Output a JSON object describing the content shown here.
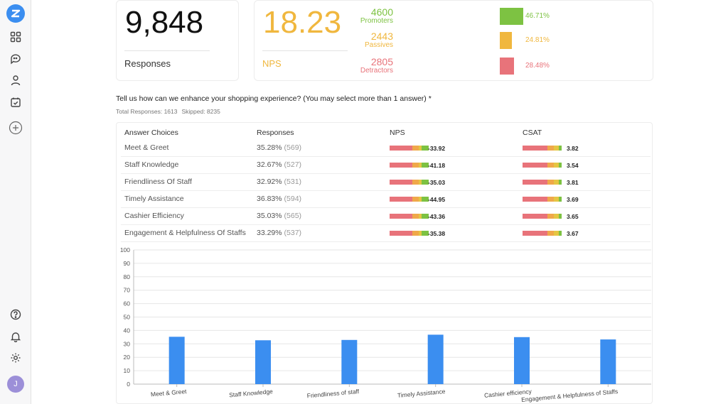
{
  "sidebar": {
    "logo": "zonka-logo-icon",
    "items": [
      {
        "name": "dashboard-icon"
      },
      {
        "name": "feedback-icon"
      },
      {
        "name": "contacts-icon"
      },
      {
        "name": "tasks-icon"
      },
      {
        "name": "add-icon"
      }
    ],
    "bottom": [
      {
        "name": "help-icon"
      },
      {
        "name": "notifications-icon"
      },
      {
        "name": "settings-icon"
      }
    ],
    "avatar_initial": "J"
  },
  "responses_card": {
    "value": "9,848",
    "label": "Responses"
  },
  "nps_card": {
    "value": "18.23",
    "label": "NPS",
    "breakdown": [
      {
        "count": "4600",
        "name": "Promoters",
        "pct": "46.71%",
        "color": "#7dc242",
        "fraction": 0.4671
      },
      {
        "count": "2443",
        "name": "Passives",
        "pct": "24.81%",
        "color": "#f0b73e",
        "fraction": 0.2481
      },
      {
        "count": "2805",
        "name": "Detractors",
        "pct": "28.48%",
        "color": "#e8737a",
        "fraction": 0.2848
      }
    ]
  },
  "question": {
    "text": "Tell us how can we enhance your shopping experience? (You may select more than 1 answer) *",
    "total_responses": "Total Responses: 1613",
    "skipped": "Skipped: 8235"
  },
  "table": {
    "headers": [
      "Answer Choices",
      "Responses",
      "NPS",
      "CSAT"
    ],
    "rows": [
      {
        "choice": "Meet & Greet",
        "pct": "35.28%",
        "count": "(569)",
        "nps": "-33.92",
        "csat": "3.82"
      },
      {
        "choice": "Staff Knowledge",
        "pct": "32.67%",
        "count": "(527)",
        "nps": "-41.18",
        "csat": "3.54"
      },
      {
        "choice": "Friendliness Of Staff",
        "pct": "32.92%",
        "count": "(531)",
        "nps": "-35.03",
        "csat": "3.81"
      },
      {
        "choice": "Timely Assistance",
        "pct": "36.83%",
        "count": "(594)",
        "nps": "-44.95",
        "csat": "3.69"
      },
      {
        "choice": "Cashier Efficiency",
        "pct": "35.03%",
        "count": "(565)",
        "nps": "-43.36",
        "csat": "3.65"
      },
      {
        "choice": "Engagement & Helpfulness Of Staffs",
        "pct": "33.29%",
        "count": "(537)",
        "nps": "-35.38",
        "csat": "3.67"
      }
    ]
  },
  "chart_data": {
    "type": "bar",
    "categories": [
      "Meet & Greet",
      "Staff Knowledge",
      "Friendliness of staff",
      "Timely Assistance",
      "Cashier efficiency",
      "Engagement & Helpfulness of Staffs"
    ],
    "values": [
      35.28,
      32.67,
      32.92,
      36.83,
      35.03,
      33.29
    ],
    "ylim": [
      0,
      100
    ],
    "yticks": [
      "0",
      "10",
      "20",
      "30",
      "40",
      "50",
      "60",
      "70",
      "80",
      "90",
      "100"
    ],
    "grid": true,
    "bar_color": "#3b8ef0"
  }
}
